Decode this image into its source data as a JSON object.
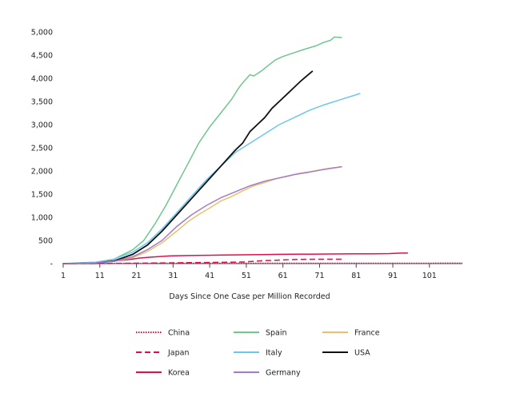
{
  "chart_data": {
    "type": "line",
    "title": "",
    "xlabel": "Days Since One Case per Million Recorded",
    "ylabel": "",
    "xlim": [
      1,
      110
    ],
    "ylim": [
      0,
      5000
    ],
    "xticks": [
      1,
      11,
      21,
      31,
      41,
      51,
      61,
      71,
      81,
      91,
      101
    ],
    "yticks": [
      0,
      500,
      1000,
      1500,
      2000,
      2500,
      3000,
      3500,
      4000,
      4500,
      5000
    ],
    "ytick_labels": [
      "-",
      "500",
      "1,000",
      "1,500",
      "2,000",
      "2,500",
      "3,000",
      "3,500",
      "4,000",
      "4,500",
      "5,000"
    ],
    "grid": false,
    "legend_position": "bottom",
    "series": [
      {
        "name": "China",
        "color": "#d6134d",
        "style": "dotted",
        "x": [
          1,
          5,
          10,
          15,
          20,
          25,
          30,
          40,
          50,
          60,
          70,
          80,
          90,
          110
        ],
        "y": [
          0,
          1,
          2,
          4,
          5,
          6,
          7,
          8,
          9,
          9,
          9,
          9,
          9,
          10
        ]
      },
      {
        "name": "Japan",
        "color": "#d6134d",
        "style": "dashed",
        "x": [
          1,
          10,
          20,
          30,
          40,
          50,
          55,
          60,
          65,
          70,
          75,
          77
        ],
        "y": [
          0,
          3,
          8,
          15,
          25,
          35,
          60,
          75,
          90,
          95,
          95,
          95
        ]
      },
      {
        "name": "Korea",
        "color": "#d6134d",
        "style": "solid",
        "x": [
          1,
          10,
          14,
          18,
          20,
          22,
          25,
          28,
          30,
          35,
          40,
          45,
          50,
          55,
          60,
          70,
          80,
          85,
          90,
          93,
          95
        ],
        "y": [
          0,
          10,
          50,
          80,
          100,
          120,
          140,
          155,
          165,
          175,
          180,
          185,
          190,
          195,
          200,
          205,
          210,
          212,
          215,
          225,
          230
        ]
      },
      {
        "name": "Spain",
        "color": "#6fc68e",
        "style": "solid",
        "x": [
          1,
          10,
          15,
          20,
          23,
          26,
          29,
          32,
          35,
          38,
          41,
          44,
          47,
          49,
          50,
          52,
          53,
          55,
          57,
          59,
          61,
          64,
          67,
          70,
          72,
          74,
          75,
          77
        ],
        "y": [
          0,
          30,
          100,
          300,
          500,
          850,
          1250,
          1700,
          2150,
          2600,
          2950,
          3250,
          3550,
          3800,
          3900,
          4080,
          4050,
          4150,
          4280,
          4400,
          4470,
          4550,
          4630,
          4700,
          4770,
          4820,
          4890,
          4880
        ]
      },
      {
        "name": "France",
        "color": "#e8c26a",
        "style": "solid",
        "x": [
          1,
          10,
          15,
          20,
          24,
          28,
          32,
          35,
          38,
          41,
          44,
          47,
          50,
          53,
          56,
          59,
          62,
          65,
          68,
          71,
          74,
          77
        ],
        "y": [
          0,
          15,
          50,
          130,
          260,
          450,
          700,
          900,
          1060,
          1200,
          1350,
          1450,
          1570,
          1680,
          1750,
          1830,
          1880,
          1940,
          1980,
          2020,
          2060,
          2090
        ]
      },
      {
        "name": "Italy",
        "color": "#6bc8ec",
        "style": "solid",
        "x": [
          1,
          10,
          15,
          20,
          24,
          28,
          32,
          36,
          40,
          44,
          48,
          52,
          56,
          60,
          64,
          68,
          72,
          76,
          80,
          82
        ],
        "y": [
          0,
          30,
          100,
          250,
          450,
          750,
          1100,
          1450,
          1800,
          2100,
          2400,
          2600,
          2800,
          3000,
          3150,
          3300,
          3420,
          3520,
          3620,
          3670
        ]
      },
      {
        "name": "USA",
        "color": "#111111",
        "style": "solid",
        "x": [
          1,
          10,
          15,
          20,
          24,
          28,
          32,
          36,
          40,
          44,
          48,
          50,
          52,
          54,
          56,
          58,
          60,
          62,
          64,
          66,
          69
        ],
        "y": [
          0,
          10,
          60,
          200,
          400,
          700,
          1050,
          1400,
          1750,
          2100,
          2450,
          2600,
          2850,
          3000,
          3150,
          3350,
          3500,
          3650,
          3800,
          3950,
          4150
        ]
      },
      {
        "name": "Germany",
        "color": "#a47bc9",
        "style": "solid",
        "x": [
          1,
          10,
          15,
          20,
          24,
          28,
          32,
          36,
          40,
          44,
          48,
          52,
          56,
          60,
          64,
          68,
          72,
          77
        ],
        "y": [
          0,
          15,
          50,
          150,
          300,
          500,
          800,
          1050,
          1250,
          1420,
          1550,
          1680,
          1780,
          1850,
          1920,
          1970,
          2030,
          2090
        ]
      }
    ],
    "legend_layout": [
      [
        "China",
        "Spain",
        "France"
      ],
      [
        "Japan",
        "Italy",
        "USA"
      ],
      [
        "Korea",
        "Germany"
      ]
    ]
  }
}
